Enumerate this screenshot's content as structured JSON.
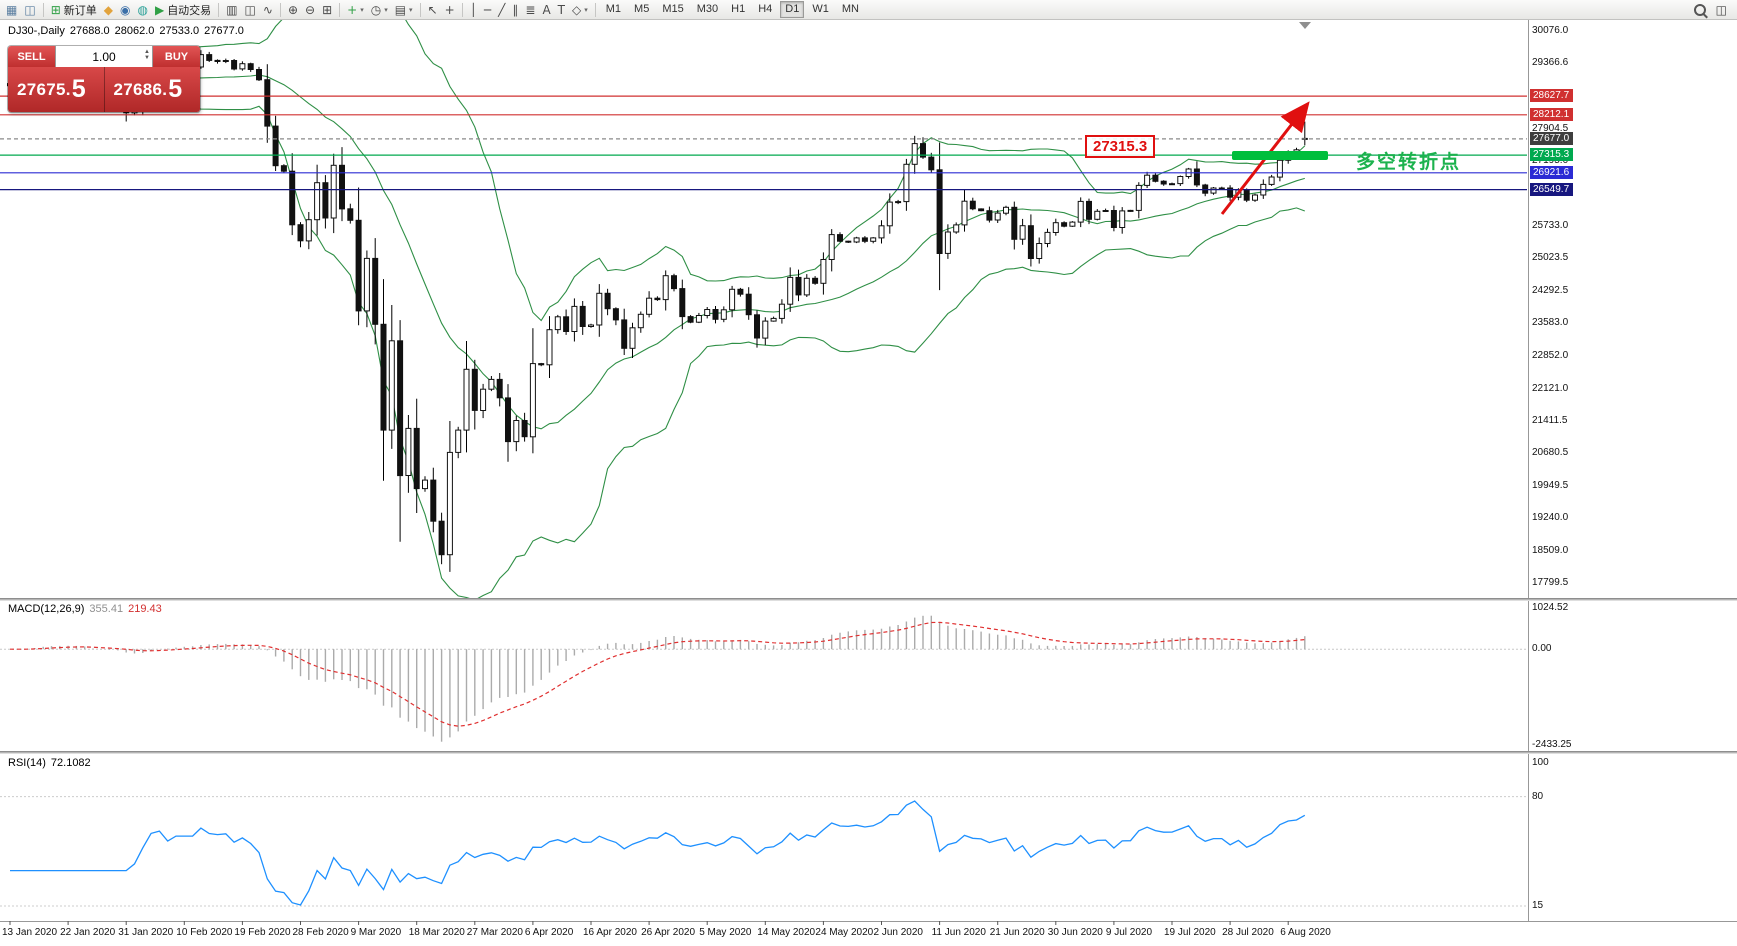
{
  "toolbar": {
    "groups": [
      {
        "items": [
          {
            "name": "new-chart-icon",
            "glyph": "▦",
            "color": "#5a7ea0"
          },
          {
            "name": "profiles-icon",
            "glyph": "◫",
            "color": "#5a7ea0"
          }
        ]
      },
      {
        "items": [
          {
            "name": "new-order-button",
            "glyph": "⊞",
            "color": "#2fa045",
            "label": "新订单"
          },
          {
            "name": "metaeditor-icon",
            "glyph": "◆",
            "color": "#e2a33c"
          },
          {
            "name": "market-depth-icon",
            "glyph": "◉",
            "color": "#3b6fa8"
          },
          {
            "name": "strategy-tester-icon",
            "glyph": "◍",
            "color": "#2aa198"
          },
          {
            "name": "autotrading-button",
            "glyph": "▶",
            "color": "#2fa045",
            "label": "自动交易"
          }
        ]
      },
      {
        "items": [
          {
            "name": "bar-chart-mode-icon",
            "glyph": "▥"
          },
          {
            "name": "candlestick-mode-icon",
            "glyph": "◫"
          },
          {
            "name": "line-chart-mode-icon",
            "glyph": "∿"
          }
        ]
      },
      {
        "items": [
          {
            "name": "zoom-in-icon",
            "glyph": "⊕"
          },
          {
            "name": "zoom-out-icon",
            "glyph": "⊖"
          },
          {
            "name": "tile-windows-icon",
            "glyph": "⊞"
          }
        ]
      },
      {
        "items": [
          {
            "name": "add-indicator-icon",
            "glyph": "+",
            "color": "#2fa045",
            "dropdown": true
          },
          {
            "name": "period-selector-icon",
            "glyph": "◷",
            "dropdown": true
          },
          {
            "name": "template-selector-icon",
            "glyph": "▤",
            "dropdown": true
          }
        ]
      },
      {
        "items": [
          {
            "name": "cursor-icon",
            "glyph": "↖"
          },
          {
            "name": "crosshair-icon",
            "glyph": "+"
          }
        ]
      },
      {
        "items": [
          {
            "name": "vertical-line-icon",
            "glyph": "│"
          },
          {
            "name": "horizontal-line-icon",
            "glyph": "─"
          },
          {
            "name": "trendline-icon",
            "glyph": "╱"
          },
          {
            "name": "equidistant-channel-icon",
            "glyph": "∥"
          },
          {
            "name": "fibonacci-icon",
            "glyph": "≣"
          },
          {
            "name": "text-icon",
            "glyph": "A"
          },
          {
            "name": "text-label-icon",
            "glyph": "T"
          },
          {
            "name": "arrow-objects-icon",
            "glyph": "◇",
            "dropdown": true
          }
        ]
      }
    ],
    "timeframes": {
      "options": [
        "M1",
        "M5",
        "M15",
        "M30",
        "H1",
        "H4",
        "D1",
        "W1",
        "MN"
      ],
      "active": "D1"
    },
    "right_items": [
      {
        "name": "search-button",
        "type": "magnifier"
      },
      {
        "name": "data-window-button",
        "glyph": "◫"
      }
    ]
  },
  "chart": {
    "header": {
      "symbol_period": "DJ30-,Daily",
      "open": "27688.0",
      "high": "28062.0",
      "low": "27533.0",
      "close": "27677.0"
    },
    "one_click": {
      "sell_label": "SELL",
      "buy_label": "BUY",
      "volume": "1.00",
      "sell_price": "27675.5",
      "buy_price": "27686.5"
    },
    "annotations": {
      "price_label": "27315.3",
      "price_label_value": 27315.3,
      "turning_point_text": "多空转折点",
      "highlight_value": 27315.3
    }
  },
  "macd": {
    "label": "MACD(12,26,9)",
    "main_value": "355.41",
    "signal_value": "219.43",
    "axis_max": "1024.52",
    "axis_zero": "0.00",
    "axis_min": "-2433.25"
  },
  "rsi": {
    "label": "RSI(14)",
    "value": "72.1082",
    "axis_ticks": [
      "100",
      "80",
      "15"
    ]
  },
  "chart_data": {
    "type": "candlestick",
    "symbol": "DJ30-",
    "timeframe": "Daily",
    "x_labels": [
      "13 Jan 2020",
      "22 Jan 2020",
      "31 Jan 2020",
      "10 Feb 2020",
      "19 Feb 2020",
      "28 Feb 2020",
      "9 Mar 2020",
      "18 Mar 2020",
      "27 Mar 2020",
      "6 Apr 2020",
      "16 Apr 2020",
      "26 Apr 2020",
      "5 May 2020",
      "14 May 2020",
      "24 May 2020",
      "2 Jun 2020",
      "11 Jun 2020",
      "21 Jun 2020",
      "30 Jun 2020",
      "9 Jul 2020",
      "19 Jul 2020",
      "28 Jul 2020",
      "6 Aug 2020"
    ],
    "label_step": 7,
    "first_open": 28860,
    "closes": [
      28907,
      28939,
      28864,
      29297,
      29348,
      29320,
      29196,
      29186,
      29160,
      28990,
      28536,
      28723,
      28859,
      28734,
      28256,
      28400,
      28807,
      29290,
      29380,
      29103,
      29278,
      29277,
      29276,
      29551,
      29423,
      29398,
      29420,
      29232,
      29348,
      29220,
      28992,
      27961,
      27081,
      26958,
      25767,
      25409,
      25880,
      26703,
      25917,
      27090,
      26121,
      25865,
      23851,
      25018,
      23553,
      21201,
      23186,
      20189,
      21237,
      19899,
      20087,
      19174,
      18430,
      20705,
      21200,
      22552,
      21637,
      22110,
      22327,
      21917,
      20944,
      21413,
      21053,
      22680,
      22654,
      23434,
      23719,
      23391,
      23950,
      23504,
      23538,
      24242,
      23900,
      23650,
      23019,
      23476,
      23775,
      24134,
      24102,
      24634,
      24346,
      23724,
      23600,
      23749,
      23883,
      23665,
      23876,
      24331,
      24222,
      23765,
      23248,
      23625,
      23685,
      24000,
      24597,
      24207,
      24576,
      24465,
      24995,
      25548,
      25401,
      25383,
      25475,
      25400,
      25475,
      25743,
      26270,
      26282,
      27111,
      27572,
      27272,
      26990,
      25128,
      25605,
      25763,
      26290,
      26120,
      26080,
      25871,
      26025,
      26156,
      25445,
      25746,
      25016,
      25350,
      25596,
      25813,
      25735,
      25827,
      26287,
      25890,
      26067,
      26085,
      25706,
      26075,
      26086,
      26643,
      26870,
      26735,
      26672,
      26681,
      26840,
      27006,
      26652,
      26470,
      26584,
      26584,
      26379,
      26540,
      26313,
      26428,
      26664,
      26828,
      27201,
      27387,
      27433,
      27677
    ],
    "last_ohlc": [
      27688.0,
      28062.0,
      27533.0,
      27677.0
    ],
    "y_ticks": [
      30076.0,
      29366.6,
      27904.5,
      27195.0,
      25733.0,
      25023.5,
      24292.5,
      23583.0,
      22852.0,
      22121.0,
      21411.5,
      20680.5,
      19949.5,
      19240.0,
      18509.0,
      17799.5
    ],
    "y_range_top": 30076.0,
    "y_range_bottom": 17799.5,
    "horizontal_lines": [
      {
        "value": 28627.7,
        "color": "#d03030",
        "style": "solid"
      },
      {
        "value": 28212.1,
        "color": "#d03030",
        "style": "solid"
      },
      {
        "value": 27677.0,
        "color": "#8a8a8a",
        "style": "dashed",
        "role": "current-price",
        "badge": "#3e3e3e"
      },
      {
        "value": 27315.3,
        "color": "#00a94f",
        "style": "solid"
      },
      {
        "value": 26921.6,
        "color": "#2b2bd4",
        "style": "solid"
      },
      {
        "value": 26549.7,
        "color": "#17177f",
        "style": "solid"
      }
    ],
    "indicators": {
      "bollinger_bands": {
        "period": 20,
        "deviation": 2,
        "color": "#2f8f46"
      },
      "macd": {
        "fast": 12,
        "slow": 26,
        "signal": 9
      },
      "rsi": {
        "period": 14
      }
    }
  }
}
